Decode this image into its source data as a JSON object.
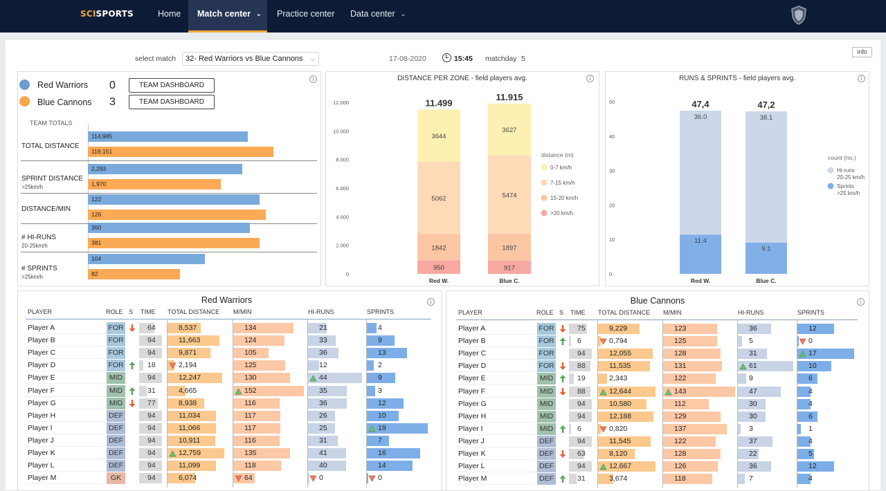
{
  "nav": {
    "logo_part1": "SCI",
    "logo_part2": "SPORTS",
    "items": [
      {
        "label": "Home",
        "active": false,
        "dropdown": false
      },
      {
        "label": "Match center",
        "active": true,
        "dropdown": true
      },
      {
        "label": "Practice center",
        "active": false,
        "dropdown": false
      },
      {
        "label": "Data center",
        "active": false,
        "dropdown": true
      }
    ],
    "dropdown_glyph": "⌄"
  },
  "topbar": {
    "select_label": "select match",
    "selected_match": "32-  Red Warriors vs Blue Cannons",
    "date": "17-08-2020",
    "time": "15:45",
    "matchday_label": "matchday",
    "matchday_value": "5",
    "info_label": "info"
  },
  "colors": {
    "red_team": "#6f9bd2",
    "blue_team": "#f8a54d",
    "red_bar": "#7aaadb",
    "blue_bar": "#fba955"
  },
  "summary": {
    "teams": [
      {
        "name": "Red Warriors",
        "score": "0",
        "button": "TEAM DASHBOARD"
      },
      {
        "name": "Blue Cannons",
        "score": "3",
        "button": "TEAM DASHBOARD"
      }
    ],
    "team_totals_label": "TEAM TOTALS",
    "metrics": [
      {
        "label": "TOTAL DISTANCE",
        "sub": "",
        "red": "114,985",
        "blue": "119,151",
        "red_frac": 0.82,
        "blue_frac": 0.95
      },
      {
        "label": "SPRINT DISTANCE",
        "sub": ">25km/h",
        "red": "2,293",
        "blue": "1,970",
        "red_frac": 0.79,
        "blue_frac": 0.68
      },
      {
        "label": "DISTANCE/MIN",
        "sub": "",
        "red": "122",
        "blue": "126",
        "red_frac": 0.88,
        "blue_frac": 0.91
      },
      {
        "label": "# HI-RUNS",
        "sub": "20-25km/h",
        "red": "360",
        "blue": "381",
        "red_frac": 0.83,
        "blue_frac": 0.88
      },
      {
        "label": "# SPRINTS",
        "sub": ">25km/h",
        "red": "104",
        "blue": "82",
        "red_frac": 0.6,
        "blue_frac": 0.47
      }
    ]
  },
  "chart_data": [
    {
      "type": "bar",
      "title": "DISTANCE PER ZONE - field players avg.",
      "categories": [
        "Red W.",
        "Blue C."
      ],
      "totals": [
        "11.499",
        "11.915"
      ],
      "legend_title": "distance (m)",
      "yticks": [
        "12.000",
        "10.000",
        "8.000",
        "6.000",
        "4.000",
        "2.000",
        "0"
      ],
      "ylim": [
        0,
        12000
      ],
      "series": [
        {
          "name": ">20 km/h",
          "values": [
            950,
            917
          ],
          "color": "#f7a8a0"
        },
        {
          "name": "15-20 km/h",
          "values": [
            1842,
            1897
          ],
          "color": "#fbc6a4"
        },
        {
          "name": "7-15 km/h",
          "values": [
            5062,
            5474
          ],
          "color": "#fedab7"
        },
        {
          "name": "0-7 km/h",
          "values": [
            3644,
            3627
          ],
          "color": "#fdf0b2"
        }
      ]
    },
    {
      "type": "bar",
      "title": "RUNS & SPRINTS - field players avg.",
      "categories": [
        "Red W.",
        "Blue C."
      ],
      "totals": [
        "47,4",
        "47,2"
      ],
      "legend_title": "count (no.)",
      "yticks": [
        "50",
        "40",
        "30",
        "20",
        "10",
        "0"
      ],
      "ylim": [
        0,
        50
      ],
      "series": [
        {
          "name": "Sprints",
          "sub": ">25 km/h",
          "values": [
            11.4,
            9.1
          ],
          "labels": [
            "11.4",
            "9.1"
          ],
          "color": "#82afe8"
        },
        {
          "name": "Hi-runs",
          "sub": "20-25 km/h",
          "values": [
            36.0,
            38.1
          ],
          "labels": [
            "36.0",
            "38.1"
          ],
          "color": "#ccd7ea"
        }
      ]
    }
  ],
  "tables": {
    "headers": [
      "PLAYER",
      "ROLE",
      "S",
      "TIME",
      "TOTAL DISTANCE",
      "M/MIN",
      "HI-RUNS",
      "SPRINTS"
    ],
    "red": {
      "title": "Red Warriors",
      "rows": [
        {
          "player": "Player A",
          "role": "FOR",
          "sub": "down",
          "time": "64",
          "dist": "8,537",
          "dist_f": 0.55,
          "mmin": "134",
          "mmin_f": 0.85,
          "hir": "21",
          "hir_f": 0.35,
          "spr": "4",
          "spr_f": 0.16,
          "dist_m": "",
          "mmin_m": "",
          "hir_m": "",
          "spr_m": ""
        },
        {
          "player": "Player B",
          "role": "FOR",
          "sub": "",
          "time": "94",
          "dist": "11,663",
          "dist_f": 0.85,
          "mmin": "124",
          "mmin_f": 0.73,
          "hir": "33",
          "hir_f": 0.51,
          "spr": "9",
          "spr_f": 0.45,
          "dist_m": "",
          "mmin_m": "",
          "hir_m": "",
          "spr_m": ""
        },
        {
          "player": "Player C",
          "role": "FOR",
          "sub": "",
          "time": "94",
          "dist": "9,871",
          "dist_f": 0.71,
          "mmin": "105",
          "mmin_f": 0.5,
          "hir": "36",
          "hir_f": 0.56,
          "spr": "13",
          "spr_f": 0.66,
          "dist_m": "",
          "mmin_m": "",
          "hir_m": "",
          "spr_m": ""
        },
        {
          "player": "Player D",
          "role": "FOR",
          "sub": "up",
          "time": "18",
          "dist": "2,194",
          "dist_f": 0.11,
          "mmin": "125",
          "mmin_f": 0.74,
          "hir": "12",
          "hir_f": 0.2,
          "spr": "2",
          "spr_f": 0.11,
          "dist_m": "down",
          "mmin_m": "",
          "hir_m": "",
          "spr_m": ""
        },
        {
          "player": "Player E",
          "role": "MID",
          "sub": "",
          "time": "94",
          "dist": "12,247",
          "dist_f": 0.9,
          "mmin": "130",
          "mmin_f": 0.8,
          "hir": "44",
          "hir_f": 1.0,
          "spr": "9",
          "spr_f": 0.47,
          "dist_m": "",
          "mmin_m": "",
          "hir_m": "up",
          "spr_m": ""
        },
        {
          "player": "Player F",
          "role": "MID",
          "sub": "up",
          "time": "31",
          "dist": "4,665",
          "dist_f": 0.3,
          "mmin": "152",
          "mmin_f": 1.0,
          "hir": "35",
          "hir_f": 0.72,
          "spr": "3",
          "spr_f": 0.14,
          "dist_m": "",
          "mmin_m": "up",
          "hir_m": "",
          "spr_m": ""
        },
        {
          "player": "Player G",
          "role": "MID",
          "sub": "down",
          "time": "77",
          "dist": "8,938",
          "dist_f": 0.6,
          "mmin": "116",
          "mmin_f": 0.66,
          "hir": "36",
          "hir_f": 0.72,
          "spr": "12",
          "spr_f": 0.6,
          "dist_m": "",
          "mmin_m": "",
          "hir_m": "",
          "spr_m": ""
        },
        {
          "player": "Player H",
          "role": "DEF",
          "sub": "",
          "time": "94",
          "dist": "11,034",
          "dist_f": 0.79,
          "mmin": "117",
          "mmin_f": 0.67,
          "hir": "26",
          "hir_f": 0.5,
          "spr": "10",
          "spr_f": 0.52,
          "dist_m": "",
          "mmin_m": "",
          "hir_m": "",
          "spr_m": ""
        },
        {
          "player": "Player I",
          "role": "DEF",
          "sub": "",
          "time": "94",
          "dist": "11,066",
          "dist_f": 0.8,
          "mmin": "117",
          "mmin_f": 0.67,
          "hir": "25",
          "hir_f": 0.5,
          "spr": "19",
          "spr_f": 1.0,
          "dist_m": "",
          "mmin_m": "",
          "hir_m": "",
          "spr_m": "up"
        },
        {
          "player": "Player J",
          "role": "DEF",
          "sub": "",
          "time": "94",
          "dist": "10,911",
          "dist_f": 0.78,
          "mmin": "116",
          "mmin_f": 0.66,
          "hir": "31",
          "hir_f": 0.55,
          "spr": "7",
          "spr_f": 0.36,
          "dist_m": "",
          "mmin_m": "",
          "hir_m": "",
          "spr_m": ""
        },
        {
          "player": "Player K",
          "role": "DEF",
          "sub": "",
          "time": "94",
          "dist": "12,759",
          "dist_f": 0.93,
          "mmin": "135",
          "mmin_f": 0.8,
          "hir": "41",
          "hir_f": 0.7,
          "spr": "16",
          "spr_f": 0.87,
          "dist_m": "up",
          "mmin_m": "",
          "hir_m": "",
          "spr_m": ""
        },
        {
          "player": "Player L",
          "role": "DEF",
          "sub": "",
          "time": "94",
          "dist": "11,099",
          "dist_f": 0.8,
          "mmin": "118",
          "mmin_f": 0.68,
          "hir": "40",
          "hir_f": 0.7,
          "spr": "14",
          "spr_f": 0.75,
          "dist_m": "",
          "mmin_m": "",
          "hir_m": "",
          "spr_m": ""
        },
        {
          "player": "Player M",
          "role": "GK",
          "sub": "",
          "time": "94",
          "dist": "6,074",
          "dist_f": 0.45,
          "mmin": "64",
          "mmin_f": 0.3,
          "hir": "0",
          "hir_f": 0.0,
          "spr": "0",
          "spr_f": 0.0,
          "dist_m": "",
          "mmin_m": "down",
          "hir_m": "down",
          "spr_m": "down"
        }
      ]
    },
    "blue": {
      "title": "Blue Cannons",
      "rows": [
        {
          "player": "Player A",
          "role": "FOR",
          "sub": "down",
          "time": "75",
          "dist": "9,229",
          "dist_f": 0.68,
          "mmin": "123",
          "mmin_f": 0.75,
          "hir": "36",
          "hir_f": 0.6,
          "spr": "12",
          "spr_f": 0.65,
          "dist_m": "",
          "mmin_m": "",
          "hir_m": "",
          "spr_m": ""
        },
        {
          "player": "Player B",
          "role": "FOR",
          "sub": "up",
          "time": "6",
          "dist": "0,794",
          "dist_f": 0.05,
          "mmin": "125",
          "mmin_f": 0.75,
          "hir": "5",
          "hir_f": 0.08,
          "spr": "0",
          "spr_f": 0.0,
          "dist_m": "down",
          "mmin_m": "",
          "hir_m": "",
          "spr_m": "down"
        },
        {
          "player": "Player C",
          "role": "FOR",
          "sub": "",
          "time": "94",
          "dist": "12,055",
          "dist_f": 0.9,
          "mmin": "128",
          "mmin_f": 0.8,
          "hir": "31",
          "hir_f": 0.52,
          "spr": "17",
          "spr_f": 1.0,
          "dist_m": "",
          "mmin_m": "",
          "hir_m": "",
          "spr_m": "up"
        },
        {
          "player": "Player D",
          "role": "FOR",
          "sub": "down",
          "time": "88",
          "dist": "11,535",
          "dist_f": 0.85,
          "mmin": "131",
          "mmin_f": 0.82,
          "hir": "61",
          "hir_f": 1.0,
          "spr": "10",
          "spr_f": 0.6,
          "dist_m": "",
          "mmin_m": "",
          "hir_m": "up",
          "spr_m": ""
        },
        {
          "player": "Player E",
          "role": "MID",
          "sub": "up",
          "time": "19",
          "dist": "2,343",
          "dist_f": 0.15,
          "mmin": "122",
          "mmin_f": 0.73,
          "hir": "9",
          "hir_f": 0.15,
          "spr": "6",
          "spr_f": 0.35,
          "dist_m": "",
          "mmin_m": "",
          "hir_m": "",
          "spr_m": ""
        },
        {
          "player": "Player F",
          "role": "MID",
          "sub": "down",
          "time": "88",
          "dist": "12,644",
          "dist_f": 0.94,
          "mmin": "143",
          "mmin_f": 1.0,
          "hir": "47",
          "hir_f": 0.78,
          "spr": "4",
          "spr_f": 0.23,
          "dist_m": "up",
          "mmin_m": "up",
          "hir_m": "",
          "spr_m": ""
        },
        {
          "player": "Player G",
          "role": "MID",
          "sub": "",
          "time": "94",
          "dist": "10,580",
          "dist_f": 0.79,
          "mmin": "112",
          "mmin_f": 0.63,
          "hir": "30",
          "hir_f": 0.5,
          "spr": "4",
          "spr_f": 0.23,
          "dist_m": "",
          "mmin_m": "",
          "hir_m": "",
          "spr_m": ""
        },
        {
          "player": "Player H",
          "role": "MID",
          "sub": "",
          "time": "94",
          "dist": "12,188",
          "dist_f": 0.91,
          "mmin": "129",
          "mmin_f": 0.8,
          "hir": "30",
          "hir_f": 0.5,
          "spr": "6",
          "spr_f": 0.35,
          "dist_m": "",
          "mmin_m": "",
          "hir_m": "",
          "spr_m": ""
        },
        {
          "player": "Player I",
          "role": "MID",
          "sub": "up",
          "time": "6",
          "dist": "0,820",
          "dist_f": 0.05,
          "mmin": "137",
          "mmin_f": 0.88,
          "hir": "3",
          "hir_f": 0.05,
          "spr": "1",
          "spr_f": 0.06,
          "dist_m": "down",
          "mmin_m": "",
          "hir_m": "",
          "spr_m": ""
        },
        {
          "player": "Player J",
          "role": "DEF",
          "sub": "",
          "time": "94",
          "dist": "11,545",
          "dist_f": 0.86,
          "mmin": "122",
          "mmin_f": 0.73,
          "hir": "37",
          "hir_f": 0.62,
          "spr": "4",
          "spr_f": 0.23,
          "dist_m": "",
          "mmin_m": "",
          "hir_m": "",
          "spr_m": ""
        },
        {
          "player": "Player K",
          "role": "DEF",
          "sub": "down",
          "time": "63",
          "dist": "8,120",
          "dist_f": 0.6,
          "mmin": "128",
          "mmin_f": 0.8,
          "hir": "22",
          "hir_f": 0.38,
          "spr": "5",
          "spr_f": 0.29,
          "dist_m": "",
          "mmin_m": "",
          "hir_m": "",
          "spr_m": ""
        },
        {
          "player": "Player L",
          "role": "DEF",
          "sub": "",
          "time": "94",
          "dist": "12,667",
          "dist_f": 0.94,
          "mmin": "126",
          "mmin_f": 0.76,
          "hir": "36",
          "hir_f": 0.6,
          "spr": "12",
          "spr_f": 0.65,
          "dist_m": "up",
          "mmin_m": "",
          "hir_m": "",
          "spr_m": ""
        },
        {
          "player": "Player M",
          "role": "DEF",
          "sub": "up",
          "time": "31",
          "dist": "3,674",
          "dist_f": 0.25,
          "mmin": "118",
          "mmin_f": 0.68,
          "hir": "7",
          "hir_f": 0.12,
          "spr": "4",
          "spr_f": 0.23,
          "dist_m": "",
          "mmin_m": "",
          "hir_m": "",
          "spr_m": ""
        }
      ]
    }
  }
}
